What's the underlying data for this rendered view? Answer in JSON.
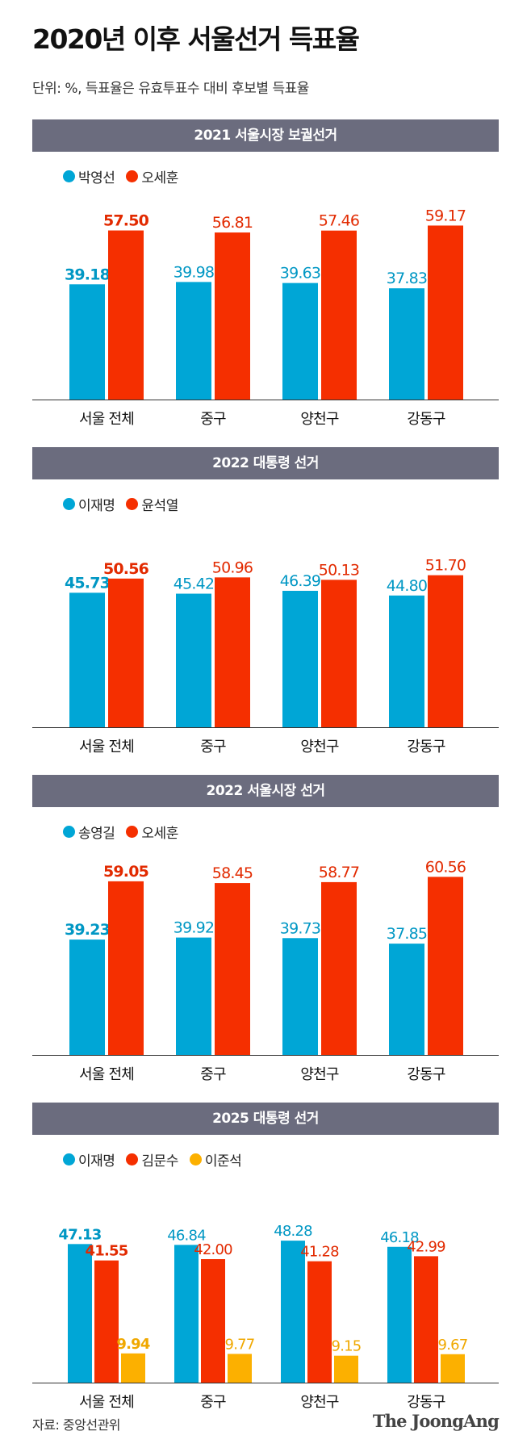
{
  "title": "2020년 이후 서울선거 득표율",
  "subtitle": "단위: %, 득표율은 유효투표수 대비 후보별 득표율",
  "source": "자료: 중앙선관위",
  "brand": "The JoongAng",
  "colors": {
    "blue": "#00a6d6",
    "red": "#f52f00",
    "yellow": "#fcb000",
    "header": "#6b6c7e"
  },
  "chart_data": [
    {
      "type": "bar",
      "title": "2021 서울시장 보궐선거",
      "categories": [
        "서울 전체",
        "중구",
        "양천구",
        "강동구"
      ],
      "ylim": [
        0,
        70
      ],
      "series": [
        {
          "name": "박영선",
          "color": "#00a6d6",
          "values": [
            "39.18",
            "39.98",
            "39.63",
            "37.83"
          ]
        },
        {
          "name": "오세훈",
          "color": "#f52f00",
          "values": [
            "57.50",
            "56.81",
            "57.46",
            "59.17"
          ]
        }
      ]
    },
    {
      "type": "bar",
      "title": "2022 대통령 선거",
      "categories": [
        "서울 전체",
        "중구",
        "양천구",
        "강동구"
      ],
      "ylim": [
        0,
        70
      ],
      "series": [
        {
          "name": "이재명",
          "color": "#00a6d6",
          "values": [
            "45.73",
            "45.42",
            "46.39",
            "44.80"
          ]
        },
        {
          "name": "윤석열",
          "color": "#f52f00",
          "values": [
            "50.56",
            "50.96",
            "50.13",
            "51.70"
          ]
        }
      ]
    },
    {
      "type": "bar",
      "title": "2022 서울시장 선거",
      "categories": [
        "서울 전체",
        "중구",
        "양천구",
        "강동구"
      ],
      "ylim": [
        0,
        70
      ],
      "series": [
        {
          "name": "송영길",
          "color": "#00a6d6",
          "values": [
            "39.23",
            "39.92",
            "39.73",
            "37.85"
          ]
        },
        {
          "name": "오세훈",
          "color": "#f52f00",
          "values": [
            "59.05",
            "58.45",
            "58.77",
            "60.56"
          ]
        }
      ]
    },
    {
      "type": "bar",
      "title": "2025 대통령 선거",
      "categories": [
        "서울 전체",
        "중구",
        "양천구",
        "강동구"
      ],
      "ylim": [
        0,
        70
      ],
      "series": [
        {
          "name": "이재명",
          "color": "#00a6d6",
          "values": [
            "47.13",
            "46.84",
            "48.28",
            "46.18"
          ]
        },
        {
          "name": "김문수",
          "color": "#f52f00",
          "values": [
            "41.55",
            "42.00",
            "41.28",
            "42.99"
          ]
        },
        {
          "name": "이준석",
          "color": "#fcb000",
          "values": [
            "9.94",
            "9.77",
            "9.15",
            "9.67"
          ]
        }
      ]
    }
  ]
}
